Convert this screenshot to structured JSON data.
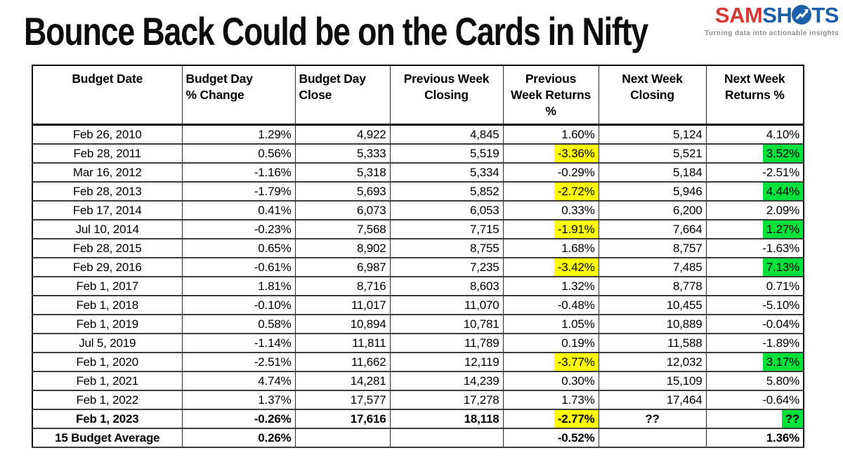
{
  "page": {
    "title": "Bounce Back Could be on the Cards in Nifty"
  },
  "logo": {
    "part1": "SAM",
    "part2": "SH",
    "part3": "TS",
    "tagline": "Turning data into actionable insights",
    "red": "#d63a32",
    "blue": "#1d5fa9",
    "icon": "trend-arrow-circle-icon"
  },
  "chart_data": {
    "type": "table",
    "title": "Bounce Back Could be on the Cards in Nifty",
    "columns": [
      "Budget Date",
      "Budget Day % Change",
      "Budget Day Close",
      "Previous Week Closing",
      "Previous Week Returns %",
      "Next Week Closing",
      "Next Week Returns %"
    ],
    "header_lines": [
      [
        "Budget Date"
      ],
      [
        "Budget Day",
        "% Change"
      ],
      [
        "Budget Day",
        "Close"
      ],
      [
        "Previous Week",
        "Closing"
      ],
      [
        "Previous",
        "Week Returns",
        "%"
      ],
      [
        "Next Week",
        "Closing"
      ],
      [
        "Next Week",
        "Returns %"
      ]
    ],
    "header_align": [
      "center",
      "left",
      "left",
      "center",
      "center",
      "center",
      "center"
    ],
    "col_align": [
      "center",
      "right",
      "right",
      "right",
      "right",
      "right",
      "right"
    ],
    "rows": [
      [
        "Feb 26, 2010",
        "1.29%",
        "4,922",
        "4,845",
        "1.60%",
        "5,124",
        "4.10%"
      ],
      [
        "Feb 28, 2011",
        "0.56%",
        "5,333",
        "5,519",
        "-3.36%",
        "5,521",
        "3.52%"
      ],
      [
        "Mar 16, 2012",
        "-1.16%",
        "5,318",
        "5,334",
        "-0.29%",
        "5,184",
        "-2.51%"
      ],
      [
        "Feb 28, 2013",
        "-1.79%",
        "5,693",
        "5,852",
        "-2.72%",
        "5,946",
        "4.44%"
      ],
      [
        "Feb 17, 2014",
        "0.41%",
        "6,073",
        "6,053",
        "0.33%",
        "6,200",
        "2.09%"
      ],
      [
        "Jul 10, 2014",
        "-0.23%",
        "7,568",
        "7,715",
        "-1.91%",
        "7,664",
        "1.27%"
      ],
      [
        "Feb 28, 2015",
        "0.65%",
        "8,902",
        "8,755",
        "1.68%",
        "8,757",
        "-1.63%"
      ],
      [
        "Feb 29, 2016",
        "-0.61%",
        "6,987",
        "7,235",
        "-3.42%",
        "7,485",
        "7.13%"
      ],
      [
        "Feb 1, 2017",
        "1.81%",
        "8,716",
        "8,603",
        "1.32%",
        "8,778",
        "0.71%"
      ],
      [
        "Feb 1, 2018",
        "-0.10%",
        "11,017",
        "11,070",
        "-0.48%",
        "10,455",
        "-5.10%"
      ],
      [
        "Feb 1, 2019",
        "0.58%",
        "10,894",
        "10,781",
        "1.05%",
        "10,889",
        "-0.04%"
      ],
      [
        "Jul 5, 2019",
        "-1.14%",
        "11,811",
        "11,789",
        "0.19%",
        "11,588",
        "-1.89%"
      ],
      [
        "Feb 1, 2020",
        "-2.51%",
        "11,662",
        "12,119",
        "-3.77%",
        "12,032",
        "3.17%"
      ],
      [
        "Feb 1, 2021",
        "4.74%",
        "14,281",
        "14,239",
        "0.30%",
        "15,109",
        "5.80%"
      ],
      [
        "Feb 1, 2022",
        "1.37%",
        "17,577",
        "17,278",
        "1.73%",
        "17,464",
        "-0.64%"
      ],
      [
        "Feb 1, 2023",
        "-0.26%",
        "17,616",
        "18,118",
        "-2.77%",
        "??",
        "??"
      ],
      [
        "15 Budget Average",
        "0.26%",
        "",
        "",
        "-0.52%",
        "",
        "1.36%"
      ]
    ],
    "bold_rows": [
      15,
      16
    ],
    "yellow_col": 4,
    "green_col": 6,
    "yellow_rows": [
      1,
      3,
      5,
      7,
      12,
      15
    ],
    "green_rows": [
      1,
      3,
      5,
      7,
      12,
      15
    ],
    "center_cells": [
      [
        15,
        5
      ]
    ],
    "colors": {
      "highlight_yellow": "#ffff00",
      "highlight_green": "#00e13b"
    }
  }
}
